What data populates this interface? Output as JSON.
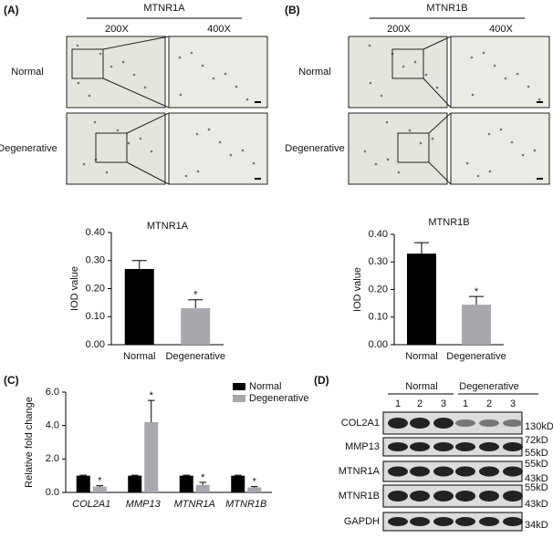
{
  "panels": [
    {
      "label": "(A)",
      "marker": "MTNR1A",
      "magnifications": [
        "200X",
        "400X"
      ],
      "rows": [
        "Normal",
        "Degenerative"
      ]
    },
    {
      "label": "(B)",
      "marker": "MTNR1B",
      "magnifications": [
        "200X",
        "400X"
      ],
      "rows": [
        "Normal",
        "Degenerative"
      ]
    },
    {
      "label": "(C)"
    },
    {
      "label": "(D)",
      "groups": [
        "Normal",
        "Degenerative"
      ],
      "lanes": [
        "1",
        "2",
        "3",
        "1",
        "2",
        "3"
      ],
      "blots": [
        {
          "protein": "COL2A1",
          "sizes": [
            "130kD"
          ]
        },
        {
          "protein": "MMP13",
          "sizes": [
            "72kD",
            "55kD"
          ]
        },
        {
          "protein": "MTNR1A",
          "sizes": [
            "55kD",
            "43kD"
          ]
        },
        {
          "protein": "MTNR1B",
          "sizes": [
            "55kD",
            "43kD"
          ]
        },
        {
          "protein": "GAPDH",
          "sizes": [
            "34kD"
          ]
        }
      ]
    }
  ],
  "chart_data": [
    {
      "type": "bar",
      "title": "MTNR1A",
      "ylabel": "IOD value",
      "categories": [
        "Normal",
        "Degenerative"
      ],
      "values": [
        0.27,
        0.13
      ],
      "errors": [
        0.03,
        0.03
      ],
      "colors": [
        "#000000",
        "#a7a8ad"
      ],
      "significance": [
        null,
        "*"
      ],
      "ylim": [
        0,
        0.4
      ],
      "yticks": [
        {
          "value": 0,
          "label": "0.00"
        },
        {
          "value": 0.1,
          "label": "0.10"
        },
        {
          "value": 0.2,
          "label": "0.20"
        },
        {
          "value": 0.3,
          "label": "0.30"
        },
        {
          "value": 0.4,
          "label": "0.40"
        }
      ]
    },
    {
      "type": "bar",
      "title": "MTNR1B",
      "ylabel": "IOD value",
      "categories": [
        "Normal",
        "Degenerative"
      ],
      "values": [
        0.33,
        0.145
      ],
      "errors": [
        0.04,
        0.03
      ],
      "colors": [
        "#000000",
        "#a7a8ad"
      ],
      "significance": [
        null,
        "*"
      ],
      "ylim": [
        0,
        0.4
      ],
      "yticks": [
        {
          "value": 0,
          "label": "0.00"
        },
        {
          "value": 0.1,
          "label": "0.10"
        },
        {
          "value": 0.2,
          "label": "0.20"
        },
        {
          "value": 0.3,
          "label": "0.30"
        },
        {
          "value": 0.4,
          "label": "0.40"
        }
      ]
    },
    {
      "type": "bar",
      "ylabel": "Relative fold change",
      "categories": [
        "COL2A1",
        "MMP13",
        "MTNR1A",
        "MTNR1B"
      ],
      "series": [
        {
          "name": "Normal",
          "color": "#000000",
          "values": [
            1,
            1,
            1,
            1
          ],
          "errors": [
            0.03,
            0.03,
            0.03,
            0.03
          ]
        },
        {
          "name": "Degenerative",
          "color": "#a7a8ad",
          "values": [
            0.35,
            4.2,
            0.45,
            0.3
          ],
          "errors": [
            0.05,
            1.3,
            0.15,
            0.05
          ],
          "significance": [
            "*",
            "*",
            "*",
            "*"
          ]
        }
      ],
      "ylim": [
        0,
        6
      ],
      "yticks": [
        {
          "value": 0,
          "label": "0.0"
        },
        {
          "value": 2,
          "label": "2.0"
        },
        {
          "value": 4,
          "label": "4.0"
        },
        {
          "value": 6,
          "label": "6.0"
        }
      ],
      "legend": "upper right"
    }
  ]
}
